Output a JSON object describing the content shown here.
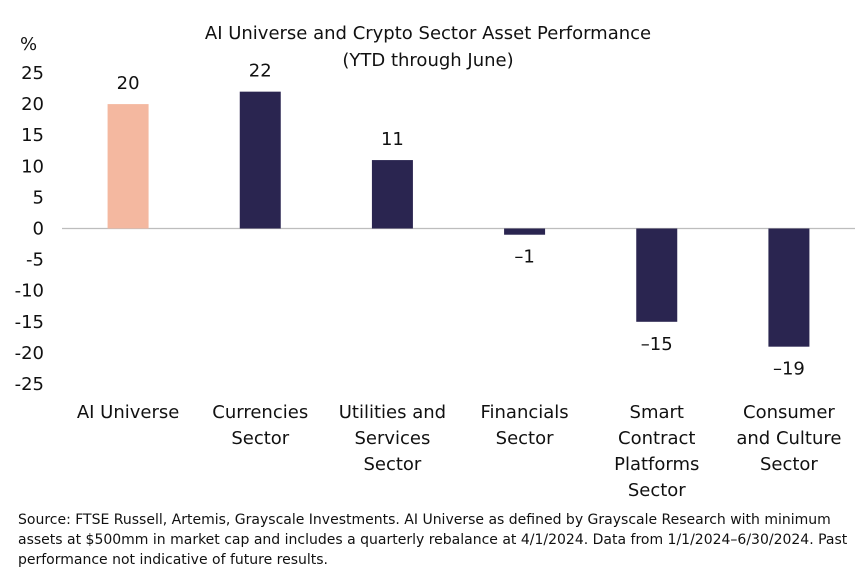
{
  "chart_data": {
    "type": "bar",
    "title": "AI Universe and Crypto Sector Asset Performance",
    "subtitle": "(YTD through June)",
    "ylabel": "%",
    "ylim": [
      -25,
      25
    ],
    "yticks": [
      25,
      20,
      15,
      10,
      5,
      0,
      -5,
      -10,
      -15,
      -20,
      -25
    ],
    "categories": [
      [
        "AI Universe"
      ],
      [
        "Currencies",
        "Sector"
      ],
      [
        "Utilities and",
        "Services",
        "Sector"
      ],
      [
        "Financials",
        "Sector"
      ],
      [
        "Smart",
        "Contract",
        "Platforms",
        "Sector"
      ],
      [
        "Consumer",
        "and Culture",
        "Sector"
      ]
    ],
    "values": [
      20,
      22,
      11,
      -1,
      -15,
      -19
    ],
    "value_labels": [
      "20",
      "22",
      "11",
      "–1",
      "–15",
      "–19"
    ],
    "colors": [
      "#f4b8a0",
      "#2a2550",
      "#2a2550",
      "#2a2550",
      "#2a2550",
      "#2a2550"
    ],
    "grid": false,
    "legend": "none"
  },
  "footnote": "Source: FTSE Russell, Artemis, Grayscale Investments. AI Universe as defined by Grayscale Research with minimum assets at $500mm in market cap and includes a quarterly rebalance at 4/1/2024. Data from 1/1/2024–6/30/2024. Past performance not indicative of future results."
}
